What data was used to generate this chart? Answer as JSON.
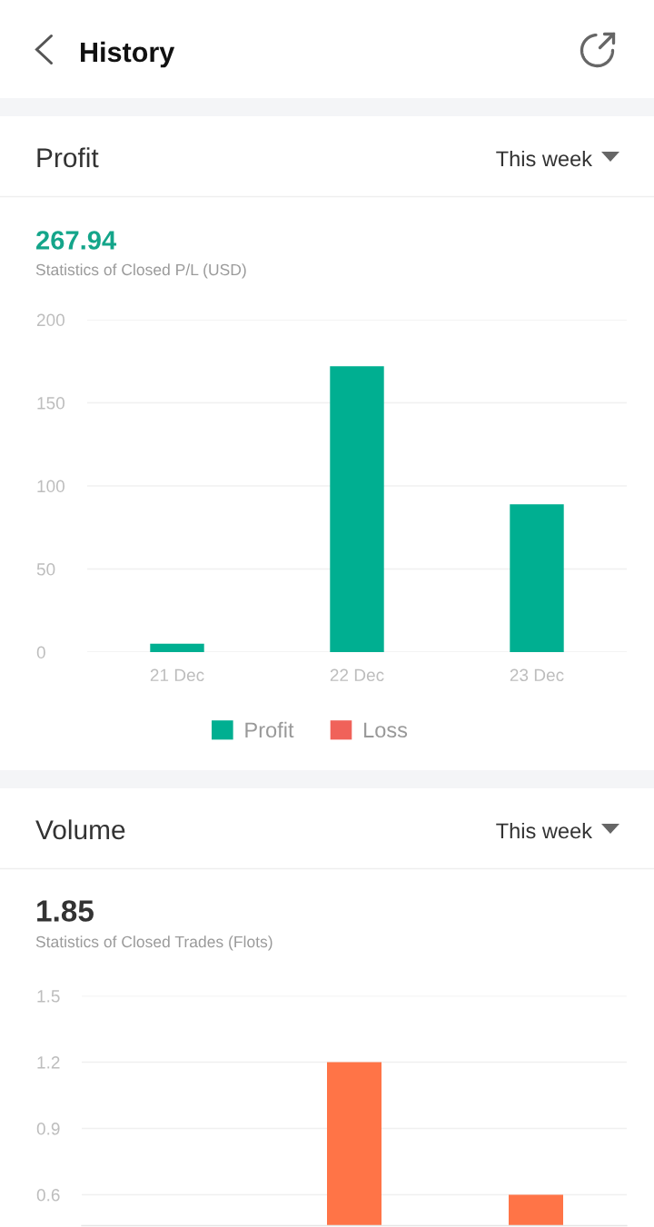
{
  "chart_data": [
    {
      "type": "bar",
      "title": "Profit",
      "subtitle": "Statistics of Closed P/L (USD)",
      "annotations": [
        "This week",
        "267.94",
        "History"
      ],
      "categories": [
        "21 Dec",
        "22 Dec",
        "23 Dec"
      ],
      "series": [
        {
          "name": "Profit",
          "color": "#00af91",
          "values": [
            5,
            172,
            89
          ]
        },
        {
          "name": "Loss",
          "color": "#f0625a",
          "values": [
            null,
            null,
            null
          ]
        }
      ],
      "stacked": true,
      "ylim": [
        0,
        200
      ],
      "yticks": [
        0,
        50,
        100,
        150,
        200
      ],
      "grid": "y",
      "legend": "bottom"
    },
    {
      "type": "bar",
      "title": "Volume",
      "subtitle": "Statistics of Closed Trades (Flots)",
      "annotations": [
        "This week",
        "1.85"
      ],
      "categories": [
        null,
        null,
        null
      ],
      "values": [
        null,
        1.2,
        0.6
      ],
      "color": "#ff7447",
      "ylim": [
        0.46,
        1.5
      ],
      "yticks": [
        0.6,
        0.9,
        1.2,
        1.5
      ],
      "grid": "y",
      "tick_labels": "y"
    }
  ]
}
